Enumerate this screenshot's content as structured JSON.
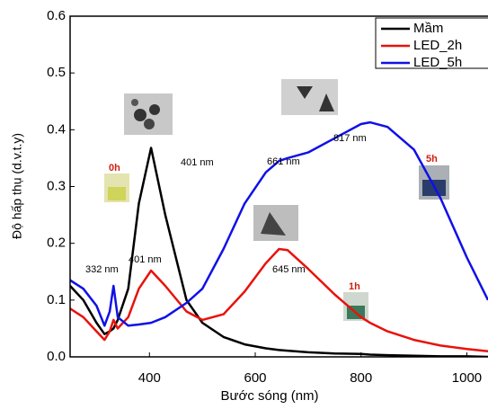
{
  "chart_data": {
    "type": "line",
    "xlabel": "Bước sóng (nm)",
    "ylabel": "Độ hấp thụ (d.v.t.y)",
    "x": [
      250,
      275,
      300,
      315,
      325,
      332,
      340,
      360,
      380,
      403,
      430,
      470,
      500,
      540,
      580,
      620,
      645,
      661,
      700,
      750,
      800,
      817,
      850,
      900,
      950,
      1000,
      1040
    ],
    "series": [
      {
        "name": "Mầm",
        "color": "#000000",
        "values": [
          0.125,
          0.1,
          0.06,
          0.04,
          0.045,
          0.05,
          0.065,
          0.12,
          0.27,
          0.368,
          0.25,
          0.1,
          0.06,
          0.035,
          0.022,
          0.015,
          0.012,
          0.011,
          0.008,
          0.006,
          0.005,
          0.004,
          0.003,
          0.002,
          0.001,
          0.001,
          0
        ]
      },
      {
        "name": "LED_2h",
        "color": "#e8120c",
        "values": [
          0.085,
          0.07,
          0.045,
          0.03,
          0.045,
          0.065,
          0.05,
          0.07,
          0.12,
          0.152,
          0.125,
          0.08,
          0.065,
          0.075,
          0.115,
          0.165,
          0.19,
          0.188,
          0.155,
          0.11,
          0.07,
          0.06,
          0.045,
          0.03,
          0.02,
          0.014,
          0.01
        ]
      },
      {
        "name": "LED_5h",
        "color": "#1010e8",
        "values": [
          0.135,
          0.12,
          0.09,
          0.055,
          0.08,
          0.125,
          0.07,
          0.055,
          0.057,
          0.06,
          0.07,
          0.095,
          0.12,
          0.19,
          0.27,
          0.325,
          0.345,
          0.35,
          0.36,
          0.385,
          0.41,
          0.413,
          0.405,
          0.365,
          0.28,
          0.175,
          0.1
        ]
      }
    ],
    "xlim": [
      250,
      1040
    ],
    "xticks": [
      400,
      600,
      800,
      1000
    ],
    "ylim": [
      0,
      0.6
    ],
    "yticks": [
      {
        "value": 0,
        "label": "0.0"
      },
      0.1,
      0.2,
      0.3,
      0.4,
      0.5,
      0.6
    ],
    "annotations": [
      "401 nm",
      "332 nm",
      "401 nm",
      "645 nm",
      "661 nm",
      "817 nm",
      "0h",
      "1h",
      "5h"
    ],
    "legend": "upper right"
  }
}
